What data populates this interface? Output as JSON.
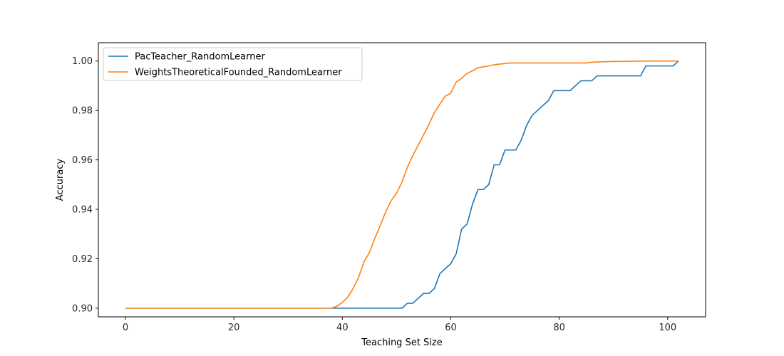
{
  "chart_data": {
    "type": "line",
    "title": "",
    "xlabel": "Teaching Set Size",
    "ylabel": "Accuracy",
    "xlim": [
      -5,
      107
    ],
    "ylim": [
      0.8965,
      1.0074
    ],
    "xticks": [
      0,
      20,
      40,
      60,
      80,
      100
    ],
    "yticks": [
      0.9,
      0.92,
      0.94,
      0.96,
      0.98,
      1.0
    ],
    "xtick_labels": [
      "0",
      "20",
      "40",
      "60",
      "80",
      "100"
    ],
    "ytick_labels": [
      "0.90",
      "0.92",
      "0.94",
      "0.96",
      "0.98",
      "1.00"
    ],
    "grid": false,
    "legend_position": "top-left",
    "series": [
      {
        "name": "PacTeacher_RandomLearner",
        "color": "#1f77b4",
        "points": [
          [
            0,
            0.9
          ],
          [
            51,
            0.9
          ],
          [
            52,
            0.902
          ],
          [
            53,
            0.902
          ],
          [
            55,
            0.906
          ],
          [
            56,
            0.906
          ],
          [
            57,
            0.908
          ],
          [
            58,
            0.914
          ],
          [
            60,
            0.918
          ],
          [
            61,
            0.922
          ],
          [
            62,
            0.932
          ],
          [
            63,
            0.934
          ],
          [
            64,
            0.942
          ],
          [
            65,
            0.948
          ],
          [
            66,
            0.948
          ],
          [
            67,
            0.95
          ],
          [
            68,
            0.958
          ],
          [
            69,
            0.958
          ],
          [
            70,
            0.964
          ],
          [
            72,
            0.964
          ],
          [
            73,
            0.968
          ],
          [
            74,
            0.974
          ],
          [
            75,
            0.978
          ],
          [
            78,
            0.984
          ],
          [
            79,
            0.988
          ],
          [
            82,
            0.988
          ],
          [
            84,
            0.992
          ],
          [
            86,
            0.992
          ],
          [
            87,
            0.994
          ],
          [
            95,
            0.994
          ],
          [
            96,
            0.998
          ],
          [
            101,
            0.998
          ],
          [
            102,
            1.0
          ]
        ]
      },
      {
        "name": "WeightsTheoreticalFounded_RandomLearner",
        "color": "#ff7f0e",
        "points": [
          [
            0,
            0.9
          ],
          [
            38,
            0.9
          ],
          [
            39,
            0.9008
          ],
          [
            40,
            0.9023
          ],
          [
            41,
            0.9045
          ],
          [
            42,
            0.908
          ],
          [
            43,
            0.9125
          ],
          [
            44,
            0.9188
          ],
          [
            45,
            0.9225
          ],
          [
            46,
            0.9283
          ],
          [
            47,
            0.9335
          ],
          [
            48,
            0.939
          ],
          [
            49,
            0.9435
          ],
          [
            50,
            0.9465
          ],
          [
            51,
            0.951
          ],
          [
            52,
            0.957
          ],
          [
            53,
            0.9618
          ],
          [
            54,
            0.966
          ],
          [
            55,
            0.9702
          ],
          [
            56,
            0.9745
          ],
          [
            57,
            0.9792
          ],
          [
            58,
            0.9826
          ],
          [
            59,
            0.9858
          ],
          [
            60,
            0.987
          ],
          [
            61,
            0.9915
          ],
          [
            62,
            0.993
          ],
          [
            63,
            0.995
          ],
          [
            64,
            0.996
          ],
          [
            65,
            0.9973
          ],
          [
            67,
            0.998
          ],
          [
            68,
            0.9985
          ],
          [
            70,
            0.999
          ],
          [
            71,
            0.9992
          ],
          [
            85,
            0.9992
          ],
          [
            86,
            0.9995
          ],
          [
            88,
            0.9997
          ],
          [
            92,
            0.9999
          ],
          [
            97,
            1.0
          ],
          [
            102,
            1.0
          ]
        ]
      }
    ]
  }
}
